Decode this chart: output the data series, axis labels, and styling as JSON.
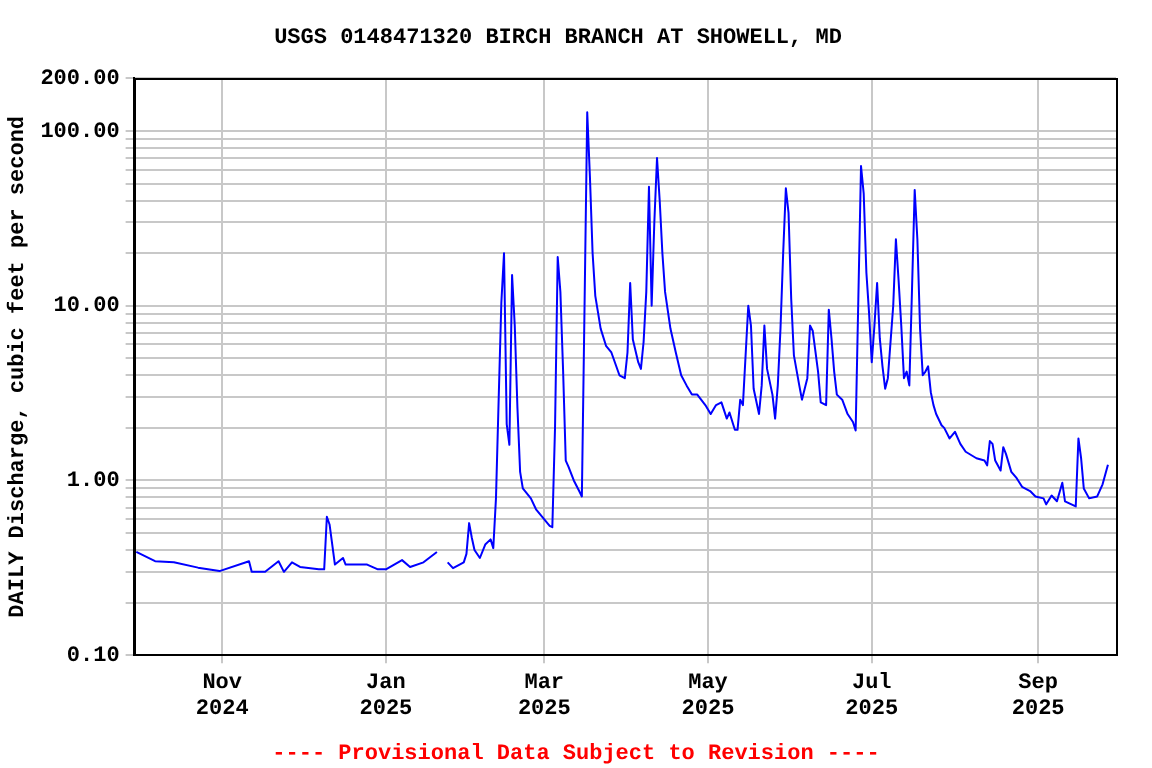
{
  "chart_data": {
    "type": "line",
    "title": "USGS 0148471320 BIRCH BRANCH AT SHOWELL, MD",
    "ylabel": "DAILY Discharge, cubic feet per second",
    "annotations": [
      "---- Provisional Data Subject to Revision ----"
    ],
    "log": "y",
    "grid": true,
    "legend": false,
    "xlim": [
      "2024-09-29",
      "2025-09-30"
    ],
    "xticks": [
      {
        "value": "2024-11-01",
        "label": "Nov\n2024"
      },
      {
        "value": "2025-01-01",
        "label": "Jan\n2025"
      },
      {
        "value": "2025-03-01",
        "label": "Mar\n2025"
      },
      {
        "value": "2025-05-01",
        "label": "May\n2025"
      },
      {
        "value": "2025-07-01",
        "label": "Jul\n2025"
      },
      {
        "value": "2025-09-01",
        "label": "Sep\n2025"
      }
    ],
    "ylim": [
      0.1,
      200
    ],
    "yticks": [
      {
        "value": 0.1,
        "label": "0.10"
      },
      {
        "value": 0.2,
        "label": null
      },
      {
        "value": 0.3,
        "label": null
      },
      {
        "value": 0.4,
        "label": null
      },
      {
        "value": 0.5,
        "label": null
      },
      {
        "value": 0.6,
        "label": null
      },
      {
        "value": 0.7,
        "label": null
      },
      {
        "value": 0.8,
        "label": null
      },
      {
        "value": 0.9,
        "label": null
      },
      {
        "value": 1,
        "label": "1.00"
      },
      {
        "value": 2,
        "label": null
      },
      {
        "value": 3,
        "label": null
      },
      {
        "value": 4,
        "label": null
      },
      {
        "value": 5,
        "label": null
      },
      {
        "value": 6,
        "label": null
      },
      {
        "value": 7,
        "label": null
      },
      {
        "value": 8,
        "label": null
      },
      {
        "value": 9,
        "label": null
      },
      {
        "value": 10,
        "label": "10.00"
      },
      {
        "value": 20,
        "label": null
      },
      {
        "value": 30,
        "label": null
      },
      {
        "value": 40,
        "label": null
      },
      {
        "value": 50,
        "label": null
      },
      {
        "value": 60,
        "label": null
      },
      {
        "value": 70,
        "label": null
      },
      {
        "value": 80,
        "label": null
      },
      {
        "value": 90,
        "label": null
      },
      {
        "value": 100,
        "label": "100.00"
      },
      {
        "value": 200,
        "label": "200.00"
      }
    ],
    "series": [
      {
        "color": "#0000ff",
        "x": [
          "2024-09-30",
          "2024-10-07",
          "2024-10-14",
          "2024-10-23",
          "2024-10-31",
          "2024-11-11",
          "2024-11-12",
          "2024-11-17",
          "2024-11-22",
          "2024-11-24",
          "2024-11-27",
          "2024-11-30",
          "2024-12-07",
          "2024-12-09",
          "2024-12-10",
          "2024-12-11",
          "2024-12-13",
          "2024-12-16",
          "2024-12-17",
          "2024-12-25",
          "2024-12-29",
          "2025-01-01",
          "2025-01-07",
          "2025-01-10",
          "2025-01-15",
          "2025-01-20",
          "2025-01-22",
          "2025-01-24",
          "2025-01-26",
          "2025-01-30",
          "2025-01-31",
          "2025-02-01",
          "2025-02-02",
          "2025-02-03",
          "2025-02-05",
          "2025-02-07",
          "2025-02-09",
          "2025-02-10",
          "2025-02-11",
          "2025-02-12",
          "2025-02-13",
          "2025-02-14",
          "2025-02-15",
          "2025-02-16",
          "2025-02-17",
          "2025-02-18",
          "2025-02-19",
          "2025-02-20",
          "2025-02-21",
          "2025-02-24",
          "2025-02-26",
          "2025-03-03",
          "2025-03-04",
          "2025-03-05",
          "2025-03-06",
          "2025-03-07",
          "2025-03-08",
          "2025-03-09",
          "2025-03-10",
          "2025-03-12",
          "2025-03-14",
          "2025-03-15",
          "2025-03-16",
          "2025-03-17",
          "2025-03-18",
          "2025-03-19",
          "2025-03-20",
          "2025-03-21",
          "2025-03-22",
          "2025-03-24",
          "2025-03-26",
          "2025-03-29",
          "2025-03-31",
          "2025-04-01",
          "2025-04-02",
          "2025-04-03",
          "2025-04-05",
          "2025-04-06",
          "2025-04-07",
          "2025-04-08",
          "2025-04-09",
          "2025-04-10",
          "2025-04-11",
          "2025-04-12",
          "2025-04-13",
          "2025-04-14",
          "2025-04-15",
          "2025-04-17",
          "2025-04-19",
          "2025-04-21",
          "2025-04-23",
          "2025-04-25",
          "2025-04-27",
          "2025-04-30",
          "2025-05-02",
          "2025-05-04",
          "2025-05-06",
          "2025-05-08",
          "2025-05-09",
          "2025-05-11",
          "2025-05-12",
          "2025-05-13",
          "2025-05-14",
          "2025-05-16",
          "2025-05-17",
          "2025-05-18",
          "2025-05-20",
          "2025-05-21",
          "2025-05-22",
          "2025-05-23",
          "2025-05-25",
          "2025-05-26",
          "2025-05-27",
          "2025-05-28",
          "2025-05-29",
          "2025-05-30",
          "2025-05-31",
          "2025-06-01",
          "2025-06-02",
          "2025-06-04",
          "2025-06-05",
          "2025-06-07",
          "2025-06-08",
          "2025-06-09",
          "2025-06-11",
          "2025-06-12",
          "2025-06-14",
          "2025-06-15",
          "2025-06-16",
          "2025-06-17",
          "2025-06-18",
          "2025-06-20",
          "2025-06-22",
          "2025-06-24",
          "2025-06-25",
          "2025-06-26",
          "2025-06-27",
          "2025-06-28",
          "2025-06-29",
          "2025-06-30",
          "2025-07-01",
          "2025-07-02",
          "2025-07-03",
          "2025-07-04",
          "2025-07-05",
          "2025-07-06",
          "2025-07-07",
          "2025-07-09",
          "2025-07-10",
          "2025-07-11",
          "2025-07-12",
          "2025-07-13",
          "2025-07-14",
          "2025-07-15",
          "2025-07-16",
          "2025-07-17",
          "2025-07-18",
          "2025-07-19",
          "2025-07-20",
          "2025-07-21",
          "2025-07-22",
          "2025-07-23",
          "2025-07-24",
          "2025-07-25",
          "2025-07-27",
          "2025-07-28",
          "2025-07-30",
          "2025-08-01",
          "2025-08-03",
          "2025-08-05",
          "2025-08-09",
          "2025-08-12",
          "2025-08-13",
          "2025-08-14",
          "2025-08-15",
          "2025-08-16",
          "2025-08-18",
          "2025-08-19",
          "2025-08-20",
          "2025-08-22",
          "2025-08-24",
          "2025-08-26",
          "2025-08-29",
          "2025-08-31",
          "2025-09-03",
          "2025-09-04",
          "2025-09-06",
          "2025-09-08",
          "2025-09-10",
          "2025-09-11",
          "2025-09-15",
          "2025-09-16",
          "2025-09-17",
          "2025-09-18",
          "2025-09-20",
          "2025-09-23",
          "2025-09-25",
          "2025-09-27"
        ],
        "values": [
          0.39,
          0.345,
          0.34,
          0.317,
          0.303,
          0.345,
          0.3,
          0.3,
          0.345,
          0.3,
          0.34,
          0.32,
          0.31,
          0.31,
          0.62,
          0.56,
          0.33,
          0.36,
          0.33,
          0.33,
          0.31,
          0.31,
          0.35,
          0.32,
          0.34,
          0.39,
          null,
          0.34,
          0.315,
          0.34,
          0.38,
          0.57,
          0.47,
          0.4,
          0.36,
          0.43,
          0.46,
          0.41,
          0.79,
          2.9,
          10.4,
          20,
          2.1,
          1.6,
          15,
          7.7,
          2.6,
          1.12,
          0.9,
          0.79,
          0.68,
          0.55,
          0.54,
          2.0,
          19,
          12,
          4.3,
          1.3,
          1.2,
          1.0,
          0.87,
          0.81,
          10,
          128,
          55,
          20,
          11.4,
          9.2,
          7.4,
          5.9,
          5.4,
          4.0,
          3.85,
          5.4,
          13.5,
          6.4,
          4.75,
          4.35,
          6.2,
          12,
          48,
          10,
          30,
          70,
          40,
          20,
          12,
          7.4,
          5.4,
          4.0,
          3.5,
          3.1,
          3.1,
          2.7,
          2.4,
          2.7,
          2.8,
          2.26,
          2.45,
          1.95,
          1.95,
          2.9,
          2.7,
          10,
          7.7,
          3.35,
          2.4,
          3.5,
          7.7,
          4.35,
          3.1,
          2.26,
          3.5,
          7.4,
          20,
          47,
          34,
          10.9,
          5.2,
          3.5,
          2.9,
          3.85,
          7.7,
          7.2,
          4.2,
          2.8,
          2.7,
          9.5,
          6.5,
          4.2,
          3.1,
          2.9,
          2.4,
          2.16,
          1.93,
          10.9,
          63,
          44,
          15.5,
          9.1,
          4.75,
          7.7,
          13.5,
          6.5,
          4.5,
          3.35,
          3.85,
          10,
          24,
          14,
          7.7,
          3.85,
          4.2,
          3.5,
          12.4,
          46,
          24,
          7.4,
          4.0,
          4.2,
          4.5,
          3.2,
          2.7,
          2.4,
          2.07,
          2.0,
          1.74,
          1.9,
          1.62,
          1.46,
          1.34,
          1.3,
          1.22,
          1.68,
          1.62,
          1.3,
          1.14,
          1.55,
          1.42,
          1.12,
          1.03,
          0.92,
          0.87,
          0.81,
          0.79,
          0.73,
          0.82,
          0.76,
          0.97,
          0.76,
          0.71,
          1.74,
          1.34,
          0.9,
          0.79,
          0.81,
          0.95,
          1.23
        ]
      }
    ]
  }
}
